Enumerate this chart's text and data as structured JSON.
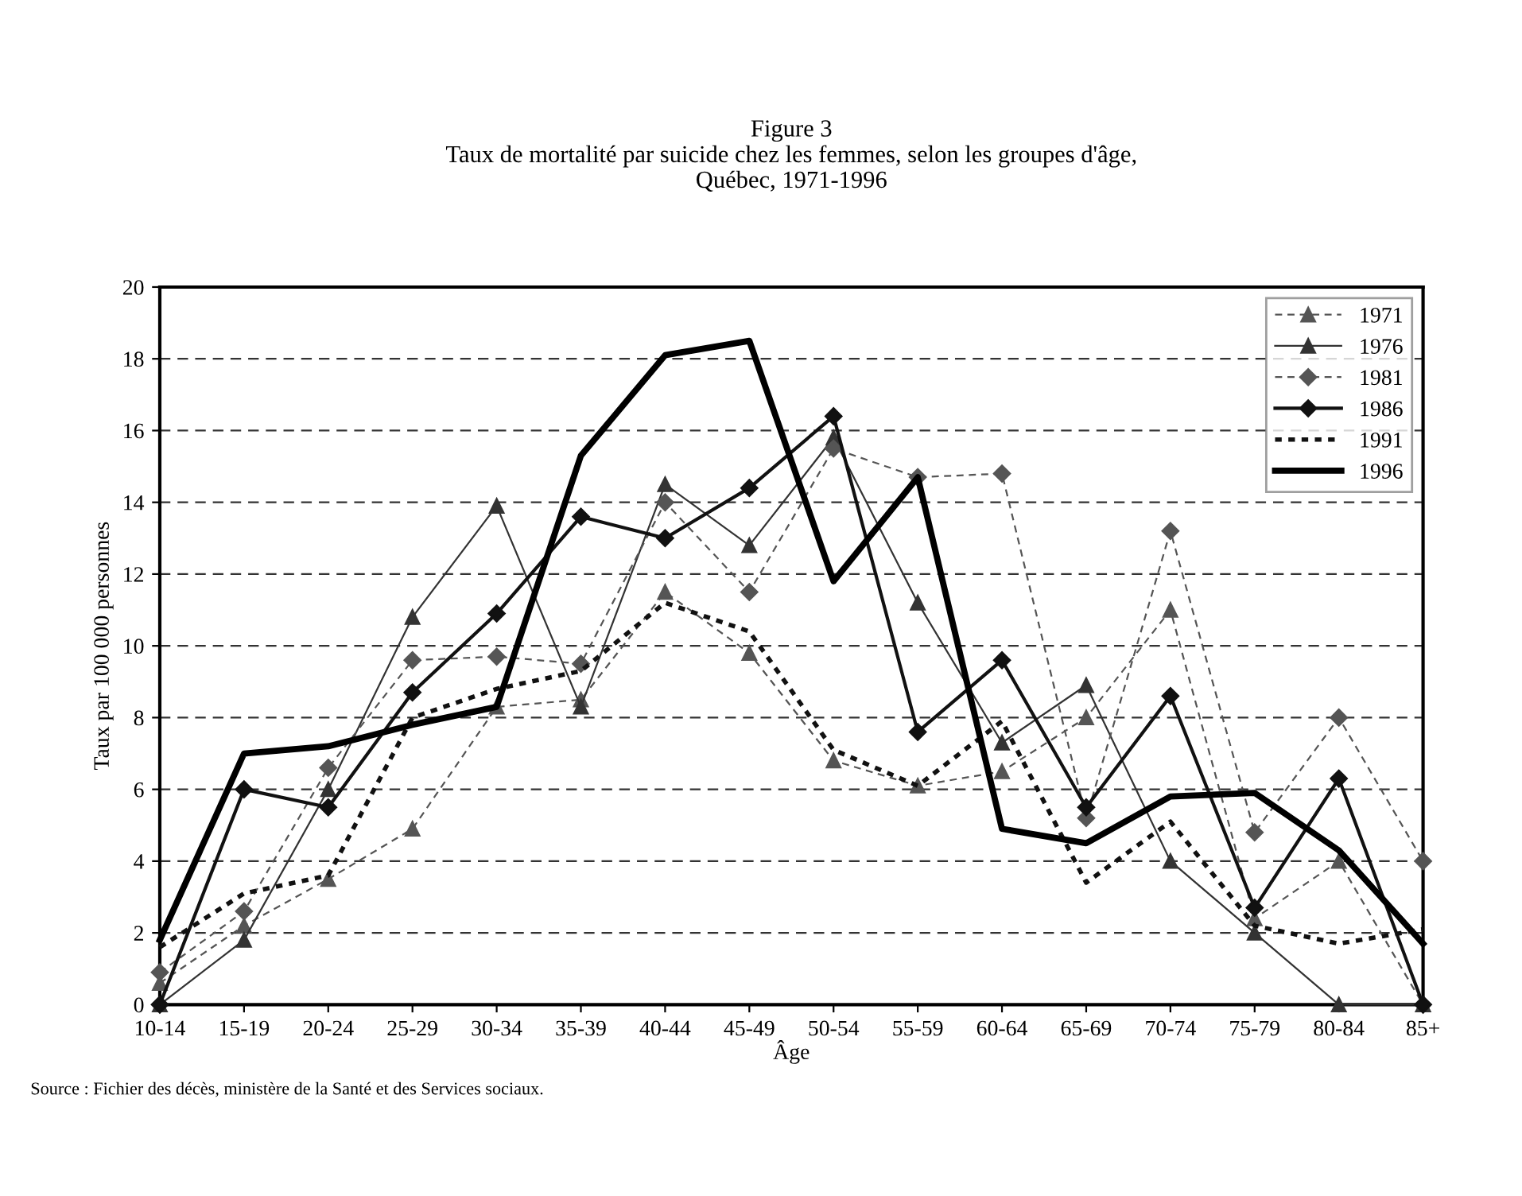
{
  "chart_data": {
    "type": "line",
    "title": "Figure 3\nTaux de mortalité par suicide chez les femmes, selon les groupes d'âge,\nQuébec, 1971-1996",
    "xlabel": "Âge",
    "ylabel": "Taux par 100 000 personnes",
    "categories": [
      "10-14",
      "15-19",
      "20-24",
      "25-29",
      "30-34",
      "35-39",
      "40-44",
      "45-49",
      "50-54",
      "55-59",
      "60-64",
      "65-69",
      "70-74",
      "75-79",
      "80-84",
      "85+"
    ],
    "series": [
      {
        "name": "1971",
        "color": "#555555",
        "marker": "triangle",
        "line_style": "dashed",
        "values": [
          0.6,
          2.2,
          3.5,
          4.9,
          8.3,
          8.5,
          11.5,
          9.8,
          6.8,
          6.1,
          6.5,
          8.0,
          11.0,
          2.4,
          4.0,
          0
        ]
      },
      {
        "name": "1976",
        "color": "#333333",
        "marker": "triangle",
        "line_style": "solid",
        "values": [
          0,
          1.8,
          6.0,
          10.8,
          13.9,
          8.3,
          14.5,
          12.8,
          15.8,
          11.2,
          7.3,
          8.9,
          4.0,
          2.0,
          0,
          0
        ]
      },
      {
        "name": "1981",
        "color": "#555555",
        "marker": "diamond",
        "line_style": "dashed",
        "values": [
          0.9,
          2.6,
          6.6,
          9.6,
          9.7,
          9.5,
          14.0,
          11.5,
          15.5,
          14.7,
          14.8,
          5.2,
          13.2,
          4.8,
          8.0,
          4.0
        ]
      },
      {
        "name": "1986",
        "color": "#111111",
        "marker": "diamond",
        "line_style": "solid",
        "values": [
          0,
          6.0,
          5.5,
          8.7,
          10.9,
          13.6,
          13.0,
          14.4,
          16.4,
          7.6,
          9.6,
          5.5,
          8.6,
          2.7,
          6.3,
          0
        ]
      },
      {
        "name": "1991",
        "color": "#111111",
        "marker": "none",
        "line_style": "dotted",
        "values": [
          1.6,
          3.1,
          3.6,
          8.0,
          8.8,
          9.3,
          11.2,
          10.4,
          7.1,
          6.1,
          7.9,
          3.4,
          5.1,
          2.2,
          1.7,
          2.1
        ]
      },
      {
        "name": "1996",
        "color": "#000000",
        "marker": "none",
        "line_style": "solid",
        "values": [
          1.8,
          7.0,
          7.2,
          7.8,
          8.3,
          15.3,
          18.1,
          18.5,
          11.8,
          14.7,
          4.9,
          4.5,
          5.8,
          5.9,
          4.3,
          1.7
        ]
      }
    ],
    "ylim": [
      0,
      20
    ],
    "yticks": [
      0,
      2,
      4,
      6,
      8,
      10,
      12,
      14,
      16,
      18,
      20
    ],
    "grid": "y",
    "legend": "top right",
    "annotations": [
      "Source : Fichier des décès, ministère de la Santé et des Services sociaux."
    ]
  }
}
